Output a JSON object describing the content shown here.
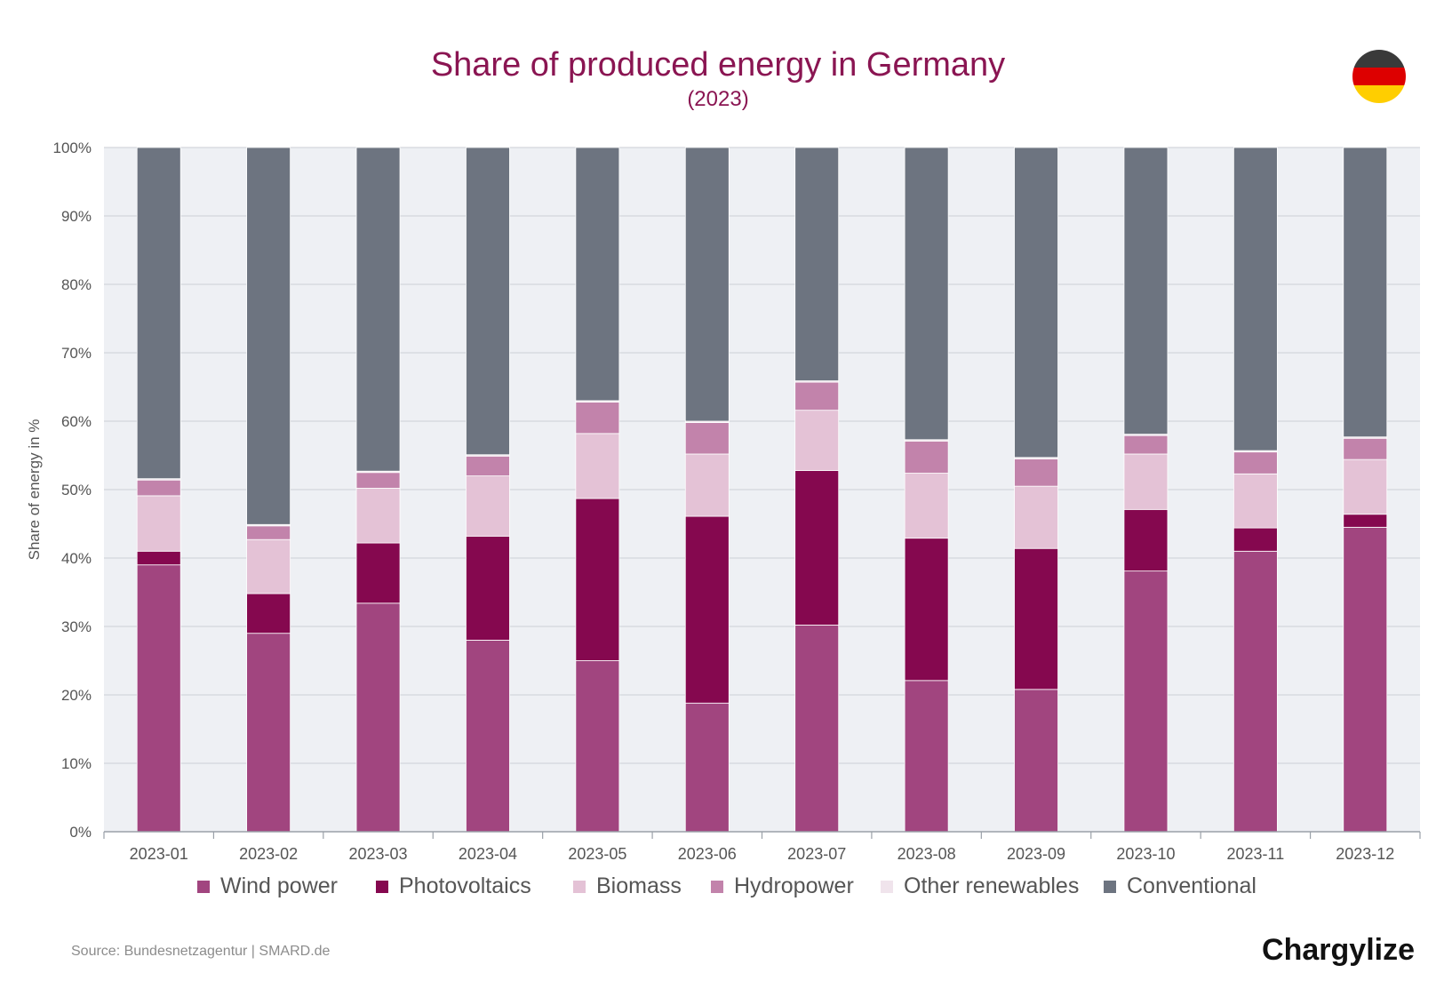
{
  "title": "Share of produced energy in Germany",
  "subtitle": "(2023)",
  "flag_colors": [
    "#3a3a3a",
    "#dd0000",
    "#ffce00"
  ],
  "source": "Source: Bundesnetzagentur | SMARD.de",
  "brand": "Chargylize",
  "chart_data": {
    "type": "bar",
    "stacked": true,
    "ylabel": "Share of energy in %",
    "ylim": [
      0,
      100
    ],
    "yticks": [
      "0%",
      "10%",
      "20%",
      "30%",
      "40%",
      "50%",
      "60%",
      "70%",
      "80%",
      "90%",
      "100%"
    ],
    "grid": true,
    "legend_position": "bottom",
    "categories": [
      "2023-01",
      "2023-02",
      "2023-03",
      "2023-04",
      "2023-05",
      "2023-06",
      "2023-07",
      "2023-08",
      "2023-09",
      "2023-10",
      "2023-11",
      "2023-12"
    ],
    "series": [
      {
        "name": "Wind power",
        "color": "#a1457f",
        "values": [
          39.0,
          29.0,
          33.4,
          28.0,
          25.0,
          18.8,
          30.2,
          22.1,
          20.8,
          38.1,
          41.0,
          44.5
        ]
      },
      {
        "name": "Photovoltaics",
        "color": "#85084f",
        "values": [
          2.0,
          5.8,
          8.8,
          15.2,
          23.7,
          27.3,
          22.6,
          20.8,
          20.6,
          9.0,
          3.4,
          1.9
        ]
      },
      {
        "name": "Biomass",
        "color": "#e4c2d6",
        "values": [
          8.1,
          7.9,
          8.0,
          8.8,
          9.5,
          9.1,
          8.8,
          9.5,
          9.1,
          8.1,
          7.9,
          8.0
        ]
      },
      {
        "name": "Hydropower",
        "color": "#c283ab",
        "values": [
          2.3,
          2.0,
          2.3,
          2.9,
          4.6,
          4.6,
          4.1,
          4.7,
          4.0,
          2.7,
          3.2,
          3.1
        ]
      },
      {
        "name": "Other renewables",
        "color": "#f0e4ec",
        "values": [
          0.2,
          0.2,
          0.2,
          0.2,
          0.2,
          0.2,
          0.2,
          0.2,
          0.2,
          0.2,
          0.2,
          0.2
        ]
      },
      {
        "name": "Conventional",
        "color": "#6d7480",
        "values": [
          48.4,
          55.1,
          47.3,
          44.9,
          37.0,
          40.0,
          34.1,
          42.7,
          45.3,
          41.9,
          44.3,
          42.3
        ]
      }
    ]
  }
}
